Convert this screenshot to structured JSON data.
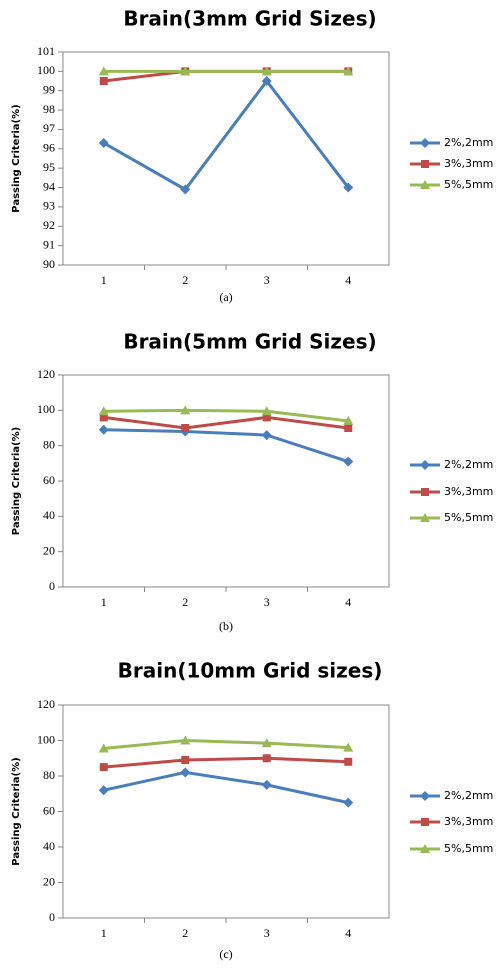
{
  "chart_data": [
    {
      "type": "line",
      "title": "Brain(3mm Grid Sizes)",
      "caption": "(a)",
      "y_label": "Passing Criteria(%)",
      "categories": [
        "1",
        "2",
        "3",
        "4"
      ],
      "series": [
        {
          "name": "2%,2mm",
          "color": "#4a7ebb",
          "marker": "diamond",
          "values": [
            96.3,
            93.9,
            99.5,
            94.0
          ]
        },
        {
          "name": "3%,3mm",
          "color": "#be4b48",
          "marker": "square",
          "values": [
            99.5,
            100,
            100,
            100
          ]
        },
        {
          "name": "5%,5mm",
          "color": "#98b954",
          "marker": "triangle",
          "values": [
            100,
            100,
            100,
            100
          ]
        }
      ],
      "ylim": [
        90,
        101
      ],
      "yticks": [
        90,
        91,
        92,
        93,
        94,
        95,
        96,
        97,
        98,
        99,
        100,
        101
      ]
    },
    {
      "type": "line",
      "title": "Brain(5mm Grid Sizes)",
      "caption": "(b)",
      "y_label": "Passing Criteria(%)",
      "categories": [
        "1",
        "2",
        "3",
        "4"
      ],
      "series": [
        {
          "name": "2%,2mm",
          "color": "#4a7ebb",
          "marker": "diamond",
          "values": [
            89,
            88,
            86,
            71
          ]
        },
        {
          "name": "3%,3mm",
          "color": "#be4b48",
          "marker": "square",
          "values": [
            96,
            90,
            96,
            90
          ]
        },
        {
          "name": "5%,5mm",
          "color": "#98b954",
          "marker": "triangle",
          "values": [
            99.5,
            100,
            99.5,
            94
          ]
        }
      ],
      "ylim": [
        0,
        120
      ],
      "yticks": [
        0,
        20,
        40,
        60,
        80,
        100,
        120
      ]
    },
    {
      "type": "line",
      "title": "Brain(10mm Grid sizes)",
      "caption": "(c)",
      "y_label": "Passing Criteria(%)",
      "categories": [
        "1",
        "2",
        "3",
        "4"
      ],
      "series": [
        {
          "name": "2%,2mm",
          "color": "#4a7ebb",
          "marker": "diamond",
          "values": [
            72,
            82,
            75,
            65
          ]
        },
        {
          "name": "3%,3mm",
          "color": "#be4b48",
          "marker": "square",
          "values": [
            85,
            89,
            90,
            88
          ]
        },
        {
          "name": "5%,5mm",
          "color": "#98b954",
          "marker": "triangle",
          "values": [
            95.5,
            100,
            98.5,
            96
          ]
        }
      ],
      "ylim": [
        0,
        120
      ],
      "yticks": [
        0,
        20,
        40,
        60,
        80,
        100,
        120
      ]
    }
  ]
}
